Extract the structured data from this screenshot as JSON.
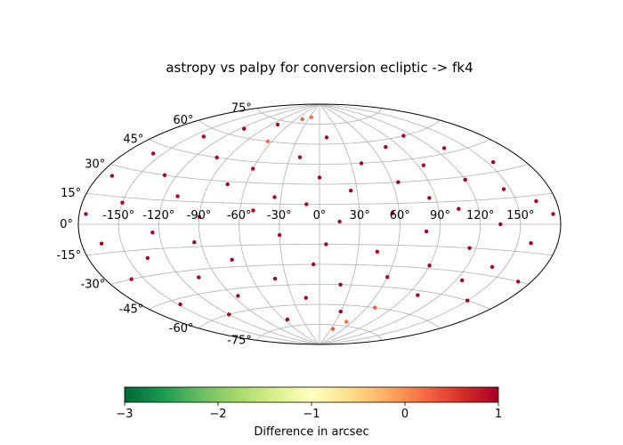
{
  "chart_data": {
    "type": "scatter",
    "projection": "aitoff",
    "title": "astropy vs palpy for conversion ecliptic -> fk4",
    "xlim_deg": [
      -180,
      180
    ],
    "ylim_deg": [
      -90,
      90
    ],
    "grid": true,
    "x_tick_labels": [
      {
        "value": -150,
        "label": "-150°"
      },
      {
        "value": -120,
        "label": "-120°"
      },
      {
        "value": -90,
        "label": "-90°"
      },
      {
        "value": -60,
        "label": "-60°"
      },
      {
        "value": -30,
        "label": "-30°"
      },
      {
        "value": 0,
        "label": "0°"
      },
      {
        "value": 30,
        "label": "30°"
      },
      {
        "value": 60,
        "label": "60°"
      },
      {
        "value": 90,
        "label": "90°"
      },
      {
        "value": 120,
        "label": "120°"
      },
      {
        "value": 150,
        "label": "150°"
      }
    ],
    "y_tick_labels": [
      {
        "value": 75,
        "label": "75°"
      },
      {
        "value": 60,
        "label": "60°"
      },
      {
        "value": 45,
        "label": "45°"
      },
      {
        "value": 30,
        "label": "30°"
      },
      {
        "value": 15,
        "label": "15°"
      },
      {
        "value": 0,
        "label": "0°"
      },
      {
        "value": -15,
        "label": "-15°"
      },
      {
        "value": -30,
        "label": "-30°"
      },
      {
        "value": -45,
        "label": "-45°"
      },
      {
        "value": -60,
        "label": "-60°"
      },
      {
        "value": -75,
        "label": "-75°"
      }
    ],
    "colorbar": {
      "label": "Difference in arcsec",
      "range": [
        -3,
        1
      ],
      "colormap": "RdYlGn_r",
      "ticks": [
        {
          "value": -3,
          "label": "−3"
        },
        {
          "value": -2,
          "label": "−2"
        },
        {
          "value": -1,
          "label": "−1"
        },
        {
          "value": 0,
          "label": "0"
        },
        {
          "value": 1,
          "label": "1"
        }
      ]
    },
    "points": [
      {
        "lon": -175,
        "lat": 5,
        "diff": 1.0
      },
      {
        "lon": -170,
        "lat": 25,
        "diff": 1.0
      },
      {
        "lon": -165,
        "lat": -10,
        "diff": 1.0
      },
      {
        "lon": -160,
        "lat": -30,
        "diff": 1.0
      },
      {
        "lon": -158,
        "lat": 40,
        "diff": 1.0
      },
      {
        "lon": -150,
        "lat": 12,
        "diff": 1.0
      },
      {
        "lon": -148,
        "lat": -48,
        "diff": 1.0
      },
      {
        "lon": -140,
        "lat": 55,
        "diff": 1.0
      },
      {
        "lon": -135,
        "lat": -20,
        "diff": 1.0
      },
      {
        "lon": -130,
        "lat": 30,
        "diff": 1.0
      },
      {
        "lon": -125,
        "lat": -5,
        "diff": 1.0
      },
      {
        "lon": -120,
        "lat": -60,
        "diff": 1.0
      },
      {
        "lon": -115,
        "lat": 65,
        "diff": 1.0
      },
      {
        "lon": -110,
        "lat": 18,
        "diff": 1.0
      },
      {
        "lon": -105,
        "lat": -35,
        "diff": 1.0
      },
      {
        "lon": -100,
        "lat": 45,
        "diff": 1.0
      },
      {
        "lon": -95,
        "lat": -12,
        "diff": 1.0
      },
      {
        "lon": -90,
        "lat": 5,
        "diff": 1.0
      },
      {
        "lon": -85,
        "lat": -50,
        "diff": 1.0
      },
      {
        "lon": -80,
        "lat": 72,
        "diff": 1.0
      },
      {
        "lon": -75,
        "lat": 28,
        "diff": 1.0
      },
      {
        "lon": -70,
        "lat": -25,
        "diff": 1.0
      },
      {
        "lon": -65,
        "lat": 60,
        "diff": 0.2
      },
      {
        "lon": -60,
        "lat": 40,
        "diff": 1.0
      },
      {
        "lon": -55,
        "lat": -70,
        "diff": 1.0
      },
      {
        "lon": -50,
        "lat": 10,
        "diff": 1.0
      },
      {
        "lon": -45,
        "lat": 78,
        "diff": 0.3
      },
      {
        "lon": -40,
        "lat": -40,
        "diff": 1.0
      },
      {
        "lon": -35,
        "lat": 20,
        "diff": 1.0
      },
      {
        "lon": -30,
        "lat": -8,
        "diff": 1.0
      },
      {
        "lon": -25,
        "lat": 80,
        "diff": 0.2
      },
      {
        "lon": -20,
        "lat": 50,
        "diff": 1.0
      },
      {
        "lon": -15,
        "lat": -55,
        "diff": 1.0
      },
      {
        "lon": -10,
        "lat": 15,
        "diff": 1.0
      },
      {
        "lon": -5,
        "lat": -30,
        "diff": 1.0
      },
      {
        "lon": 0,
        "lat": 35,
        "diff": 1.0
      },
      {
        "lon": 5,
        "lat": -15,
        "diff": 1.0
      },
      {
        "lon": 10,
        "lat": 65,
        "diff": 1.0
      },
      {
        "lon": 15,
        "lat": 2,
        "diff": 1.0
      },
      {
        "lon": 20,
        "lat": -45,
        "diff": 1.0
      },
      {
        "lon": 25,
        "lat": 25,
        "diff": 1.0
      },
      {
        "lon": 30,
        "lat": -65,
        "diff": 1.0
      },
      {
        "lon": 35,
        "lat": -78,
        "diff": 0.3
      },
      {
        "lon": 40,
        "lat": 45,
        "diff": 1.0
      },
      {
        "lon": 45,
        "lat": -20,
        "diff": 1.0
      },
      {
        "lon": 50,
        "lat": -72,
        "diff": 0.2
      },
      {
        "lon": 55,
        "lat": 8,
        "diff": 1.0
      },
      {
        "lon": 60,
        "lat": -38,
        "diff": 1.0
      },
      {
        "lon": 65,
        "lat": 30,
        "diff": 1.0
      },
      {
        "lon": 70,
        "lat": -60,
        "diff": 0.3
      },
      {
        "lon": 75,
        "lat": 55,
        "diff": 1.0
      },
      {
        "lon": 80,
        "lat": -5,
        "diff": 1.0
      },
      {
        "lon": 85,
        "lat": 18,
        "diff": 1.0
      },
      {
        "lon": 90,
        "lat": -28,
        "diff": 1.0
      },
      {
        "lon": 95,
        "lat": 40,
        "diff": 1.0
      },
      {
        "lon": 100,
        "lat": -48,
        "diff": 1.0
      },
      {
        "lon": 105,
        "lat": 10,
        "diff": 1.0
      },
      {
        "lon": 110,
        "lat": 60,
        "diff": 1.0
      },
      {
        "lon": 115,
        "lat": -15,
        "diff": 1.0
      },
      {
        "lon": 120,
        "lat": 28,
        "diff": 1.0
      },
      {
        "lon": 125,
        "lat": -35,
        "diff": 1.0
      },
      {
        "lon": 130,
        "lat": 48,
        "diff": 1.0
      },
      {
        "lon": 135,
        "lat": 0,
        "diff": 1.0
      },
      {
        "lon": 140,
        "lat": -25,
        "diff": 1.0
      },
      {
        "lon": 145,
        "lat": 20,
        "diff": 1.0
      },
      {
        "lon": 150,
        "lat": -45,
        "diff": 1.0
      },
      {
        "lon": 155,
        "lat": 35,
        "diff": 1.0
      },
      {
        "lon": 160,
        "lat": -10,
        "diff": 1.0
      },
      {
        "lon": 165,
        "lat": 12,
        "diff": 1.0
      },
      {
        "lon": 170,
        "lat": -30,
        "diff": 1.0
      },
      {
        "lon": 175,
        "lat": 5,
        "diff": 1.0
      }
    ]
  }
}
